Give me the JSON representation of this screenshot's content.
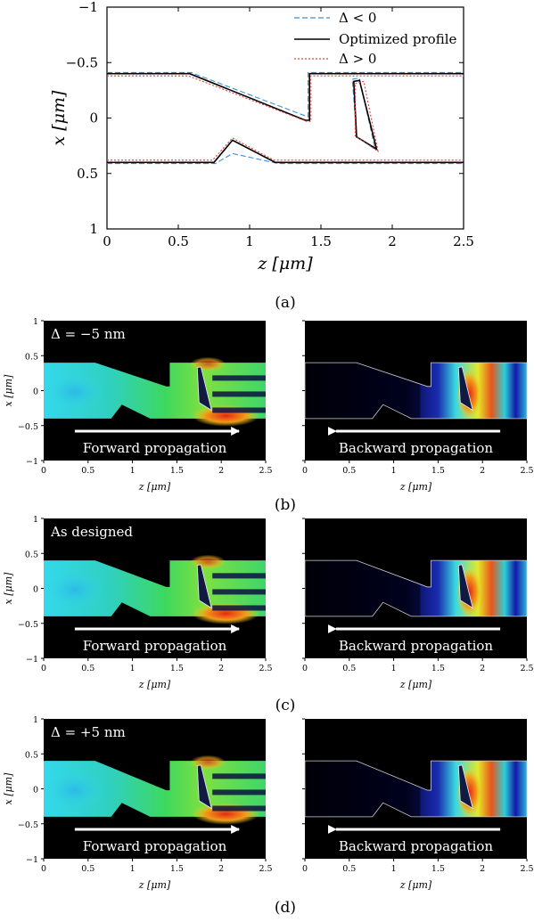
{
  "chart_data": [
    {
      "type": "line",
      "panel": "(a)",
      "xlabel": "z [μm]",
      "ylabel": "x [μm]",
      "xlim": [
        0,
        2.5
      ],
      "ylim": [
        1,
        -1
      ],
      "y_inverted": true,
      "xticks": [
        "0",
        "0.5",
        "1",
        "1.5",
        "2",
        "2.5"
      ],
      "yticks": [
        "−1",
        "−0.5",
        "0",
        "0.5",
        "1"
      ],
      "legend_position": "top-right",
      "series": [
        {
          "name": "Δ < 0",
          "style": "dashed",
          "color": "#3a8fd8",
          "top_edge": [
            [
              0,
              -0.41
            ],
            [
              0.59,
              -0.41
            ],
            [
              1.41,
              -0.01
            ],
            [
              1.41,
              -0.41
            ],
            [
              2.5,
              -0.41
            ]
          ],
          "bottom_edge": [
            [
              0,
              0.41
            ],
            [
              0.76,
              0.41
            ],
            [
              0.88,
              0.32
            ],
            [
              1.2,
              0.41
            ],
            [
              2.5,
              0.41
            ]
          ],
          "pillar": [
            [
              1.72,
              -0.35
            ],
            [
              1.77,
              -0.36
            ],
            [
              1.88,
              0.28
            ],
            [
              1.75,
              0.17
            ]
          ]
        },
        {
          "name": "Optimized profile",
          "style": "solid",
          "color": "#000000",
          "top_edge": [
            [
              0,
              -0.4
            ],
            [
              0.58,
              -0.4
            ],
            [
              1.39,
              0.02
            ],
            [
              1.42,
              0.02
            ],
            [
              1.42,
              -0.4
            ],
            [
              2.5,
              -0.4
            ]
          ],
          "bottom_edge": [
            [
              0,
              0.4
            ],
            [
              0.75,
              0.4
            ],
            [
              0.88,
              0.2
            ],
            [
              1.18,
              0.4
            ],
            [
              2.5,
              0.4
            ]
          ],
          "pillar": [
            [
              1.73,
              -0.33
            ],
            [
              1.77,
              -0.34
            ],
            [
              1.89,
              0.28
            ],
            [
              1.75,
              0.17
            ]
          ]
        },
        {
          "name": "Δ > 0",
          "style": "dotted",
          "color": "#e03c3c",
          "top_edge": [
            [
              0,
              -0.38
            ],
            [
              0.57,
              -0.38
            ],
            [
              1.4,
              0.03
            ],
            [
              1.43,
              0.03
            ],
            [
              1.43,
              -0.38
            ],
            [
              2.5,
              -0.38
            ]
          ],
          "bottom_edge": [
            [
              0,
              0.38
            ],
            [
              0.74,
              0.38
            ],
            [
              0.88,
              0.18
            ],
            [
              1.17,
              0.38
            ],
            [
              2.5,
              0.38
            ]
          ],
          "pillar": [
            [
              1.74,
              -0.31
            ],
            [
              1.8,
              -0.33
            ],
            [
              1.9,
              0.3
            ],
            [
              1.74,
              0.16
            ]
          ]
        }
      ]
    },
    {
      "type": "heatmap",
      "panel": "(b)",
      "annotation": "Δ = −5 nm",
      "xlabel": "z [μm]",
      "ylabel": "x [μm]",
      "xlim": [
        0,
        2.5
      ],
      "ylim": [
        -1,
        1
      ],
      "xticks": [
        "0",
        "0.5",
        "1",
        "1.5",
        "2",
        "2.5"
      ],
      "yticks": [
        "1",
        "0.5",
        "0",
        "−0.5",
        "−1"
      ],
      "left_label": "Forward propagation",
      "right_label": "Backward propagation",
      "right_annotation": "",
      "right_yticks_shown": false
    },
    {
      "type": "heatmap",
      "panel": "(c)",
      "annotation": "As designed",
      "xlabel": "z [μm]",
      "ylabel": "x [μm]",
      "xlim": [
        0,
        2.5
      ],
      "ylim": [
        -1,
        1
      ],
      "xticks": [
        "0",
        "0.5",
        "1",
        "1.5",
        "2",
        "2.5"
      ],
      "yticks": [
        "1",
        "0.5",
        "0",
        "−0.5",
        "−1"
      ],
      "left_label": "Forward propagation",
      "right_label": "Backward propagation"
    },
    {
      "type": "heatmap",
      "panel": "(d)",
      "annotation": "Δ = +5 nm",
      "xlabel": "z [μm]",
      "ylabel": "x [μm]",
      "xlim": [
        0,
        2.5
      ],
      "ylim": [
        -1,
        1
      ],
      "xticks": [
        "0",
        "0.5",
        "1",
        "1.5",
        "2",
        "2.5"
      ],
      "yticks": [
        "1",
        "0.5",
        "0",
        "−0.5",
        "−1"
      ],
      "left_label": "Forward propagation",
      "right_label": "Backward propagation"
    }
  ],
  "captions": [
    "(a)",
    "(b)",
    "(c)",
    "(d)"
  ],
  "colors": {
    "dark_bg": "#000000",
    "field_cold": "#34d6e6",
    "field_mid": "#2fd36a",
    "field_warm": "#f7e11a",
    "field_hot": "#e23a14",
    "dashed": "#3a8fd8",
    "dotted": "#e03c3c"
  }
}
